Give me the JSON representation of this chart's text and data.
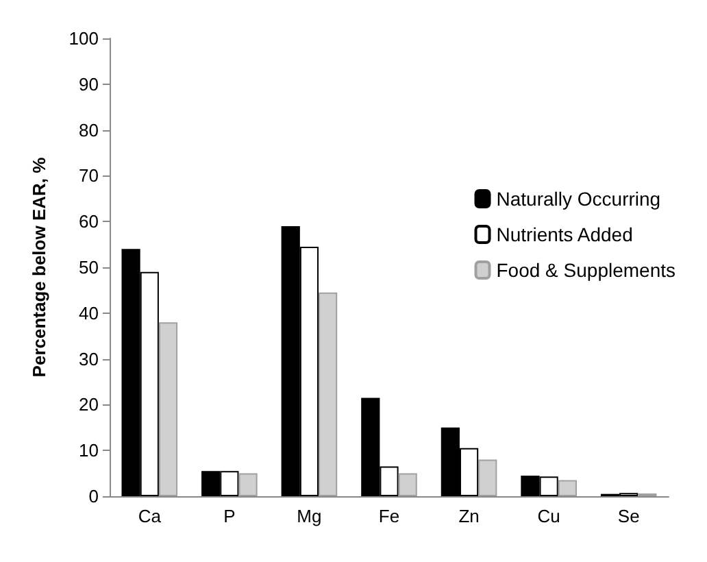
{
  "chart_data": {
    "type": "bar",
    "ylabel": "Percentage below EAR, %",
    "categories": [
      "Ca",
      "P",
      "Mg",
      "Fe",
      "Zn",
      "Cu",
      "Se"
    ],
    "series": [
      {
        "name": "Naturally Occurring",
        "color": "#000000",
        "values": [
          54,
          5.5,
          59,
          21.5,
          15,
          4.5,
          0.5
        ]
      },
      {
        "name": "Nutrients Added",
        "color": "#ffffff",
        "values": [
          49,
          5.5,
          54.5,
          6.5,
          10.5,
          4.3,
          0.7
        ]
      },
      {
        "name": "Food & Supplements",
        "color": "#d0d0d0",
        "values": [
          38,
          5,
          44.5,
          5,
          8,
          3.5,
          0.6
        ]
      }
    ],
    "ylim": [
      0,
      100
    ],
    "yticks": [
      0,
      10,
      20,
      30,
      40,
      50,
      60,
      70,
      80,
      90,
      100
    ],
    "grid": false,
    "legend": "right"
  }
}
